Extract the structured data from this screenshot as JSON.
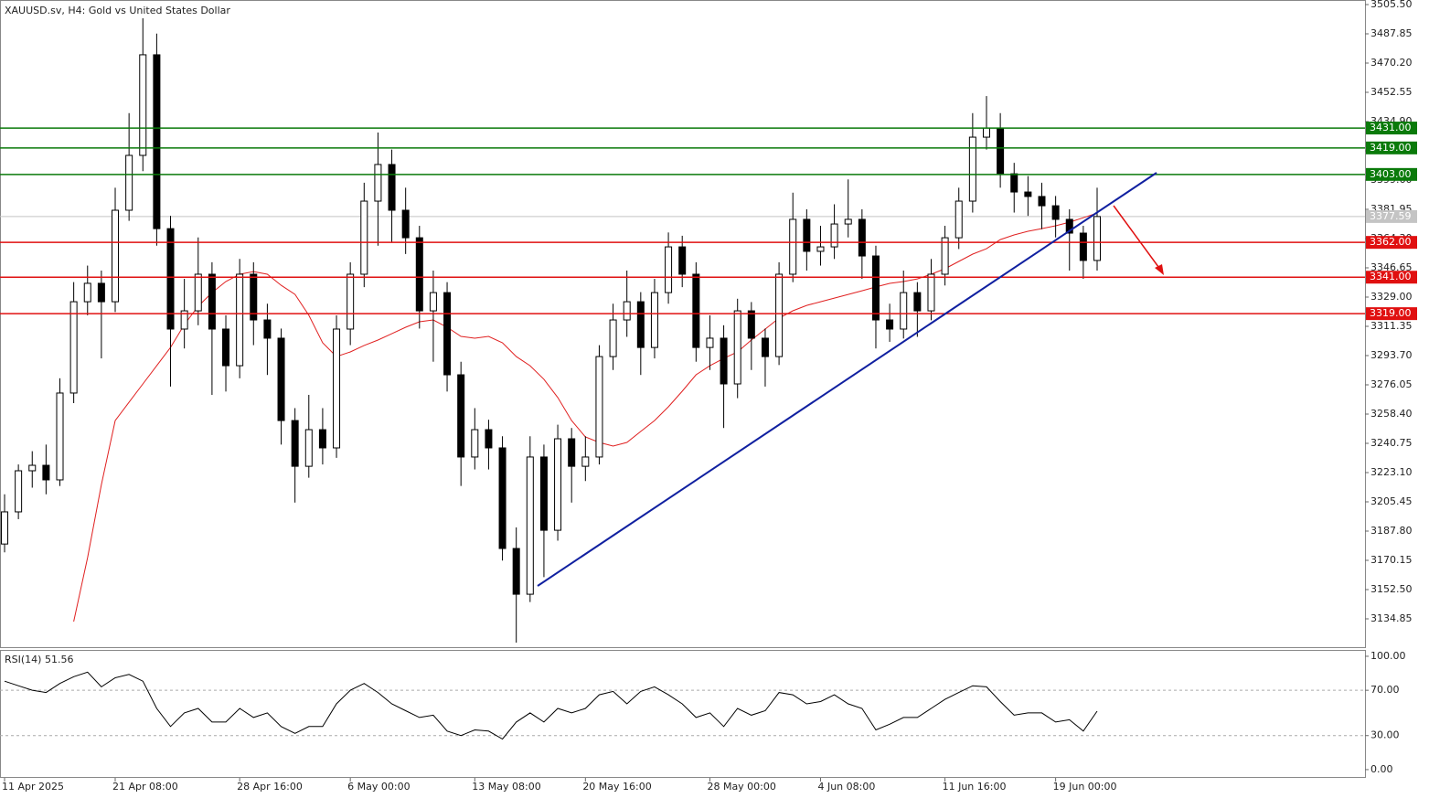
{
  "chart_data": [
    {
      "type": "candlestick",
      "title": "XAUUSD.sv, H4:  Gold vs United States Dollar",
      "categories": [
        "11 Apr 2025",
        null,
        null,
        null,
        null,
        null,
        null,
        null,
        "21 Apr 08:00",
        null,
        null,
        null,
        null,
        null,
        null,
        null,
        null,
        "28 Apr 16:00",
        null,
        null,
        null,
        null,
        null,
        null,
        null,
        "6 May 00:00",
        null,
        null,
        null,
        null,
        null,
        null,
        null,
        null,
        "13 May 08:00",
        null,
        null,
        null,
        null,
        null,
        null,
        null,
        "20 May 16:00",
        null,
        null,
        null,
        null,
        null,
        null,
        null,
        null,
        "28 May 00:00",
        null,
        null,
        null,
        null,
        null,
        null,
        null,
        "4 Jun 08:00",
        null,
        null,
        null,
        null,
        null,
        null,
        null,
        null,
        "11 Jun 16:00",
        null,
        null,
        null,
        null,
        null,
        null,
        null,
        "19 Jun 00:00",
        null,
        null,
        null
      ],
      "open": [
        3180,
        3199.4,
        3224.2,
        3227.5,
        3218.7,
        3271.1,
        3326.2,
        3337.3,
        3326.2,
        3381.4,
        3414.5,
        3475.2,
        3370.3,
        3309.7,
        3320.7,
        3342.8,
        3309.7,
        3287.6,
        3342.8,
        3315.2,
        3304.2,
        3254.5,
        3226.9,
        3249.0,
        3238.0,
        3309.7,
        3342.8,
        3386.9,
        3409.0,
        3381.4,
        3364.8,
        3320.7,
        3331.7,
        3282.1,
        3232.5,
        3249.0,
        3238.0,
        3177.3,
        3149.7,
        3232.5,
        3188.3,
        3243.5,
        3226.9,
        3232.5,
        3293.1,
        3315.2,
        3326.2,
        3298.6,
        3331.7,
        3359.3,
        3342.8,
        3298.6,
        3304.2,
        3276.6,
        3320.7,
        3304.2,
        3293.1,
        3342.8,
        3375.9,
        3356.6,
        3359.3,
        3373.1,
        3375.9,
        3353.8,
        3315.2,
        3309.7,
        3331.7,
        3320.7,
        3342.8,
        3364.8,
        3386.9,
        3425.5,
        3431.0,
        3403.4,
        3392.4,
        3389.7,
        3384.1,
        3375.9,
        3367.6,
        3351.1
      ],
      "high": [
        3210,
        3228,
        3236,
        3240,
        3280,
        3338,
        3348,
        3345,
        3395,
        3440,
        3497.2,
        3488,
        3378,
        3340,
        3365,
        3350,
        3318,
        3352,
        3350,
        3325,
        3310,
        3262,
        3270,
        3262,
        3318,
        3350,
        3398,
        3428.3,
        3418,
        3395,
        3372,
        3345,
        3338,
        3290,
        3262,
        3255,
        3245,
        3190,
        3245,
        3240,
        3252,
        3250,
        3245,
        3300,
        3325,
        3345,
        3332,
        3340,
        3368,
        3366,
        3350,
        3318,
        3312,
        3328,
        3326,
        3310,
        3350,
        3392,
        3382,
        3372,
        3385,
        3400,
        3382,
        3360,
        3325,
        3345,
        3338,
        3352,
        3372,
        3395,
        3440,
        3450.3,
        3440,
        3410,
        3402,
        3398,
        3390,
        3382,
        3372,
        3395
      ],
      "low": [
        3175,
        3195,
        3214,
        3210,
        3215,
        3265,
        3318,
        3292,
        3320,
        3375,
        3405,
        3360,
        3275,
        3298,
        3312,
        3270,
        3272,
        3280,
        3300,
        3282,
        3240,
        3205,
        3220,
        3228,
        3232,
        3300,
        3335,
        3360,
        3362,
        3355,
        3310,
        3290,
        3272,
        3215,
        3225,
        3225,
        3170,
        3120.5,
        3145,
        3160,
        3182,
        3205,
        3218,
        3228,
        3285,
        3305,
        3282,
        3292,
        3325,
        3335,
        3290,
        3285,
        3250,
        3268,
        3285,
        3275,
        3288,
        3338,
        3345,
        3348,
        3352,
        3365,
        3340,
        3298,
        3302,
        3304,
        3305,
        3315,
        3336,
        3358,
        3380,
        3418,
        3395,
        3380,
        3378,
        3370,
        3365,
        3345,
        3340,
        3345
      ],
      "close": [
        3199.4,
        3224.2,
        3227.5,
        3218.7,
        3271.1,
        3326.2,
        3337.3,
        3326.2,
        3381.4,
        3414.5,
        3475.2,
        3370.3,
        3309.7,
        3320.7,
        3342.8,
        3309.7,
        3287.6,
        3342.8,
        3315.2,
        3304.2,
        3254.5,
        3226.9,
        3249.0,
        3238.0,
        3309.7,
        3342.8,
        3386.9,
        3409.0,
        3381.4,
        3364.8,
        3320.7,
        3331.7,
        3282.1,
        3232.5,
        3249.0,
        3238.0,
        3177.3,
        3149.7,
        3232.5,
        3188.3,
        3243.5,
        3226.9,
        3232.5,
        3293.1,
        3315.2,
        3326.2,
        3298.6,
        3331.7,
        3359.3,
        3342.8,
        3298.6,
        3304.2,
        3276.6,
        3320.7,
        3304.2,
        3293.1,
        3342.8,
        3375.9,
        3356.6,
        3359.3,
        3373.1,
        3375.9,
        3353.8,
        3315.2,
        3309.7,
        3331.7,
        3320.7,
        3342.8,
        3364.8,
        3386.9,
        3425.5,
        3431.0,
        3403.4,
        3392.4,
        3389.7,
        3384.1,
        3375.9,
        3367.6,
        3351.1,
        3377.6
      ],
      "up_color": "#ffffff",
      "down_color": "#000000",
      "wick_color": "#000000",
      "ma_color": "#e02020",
      "ma_values": [
        null,
        null,
        null,
        null,
        null,
        3133.2,
        3171.8,
        3215.9,
        3254.5,
        3265.5,
        3276.6,
        3287.6,
        3298.6,
        3312.4,
        3323.5,
        3331.7,
        3338.4,
        3342.8,
        3344.4,
        3342.8,
        3336.1,
        3330.6,
        3318.0,
        3301.4,
        3293.1,
        3295.9,
        3299.8,
        3303.1,
        3306.9,
        3310.8,
        3314.1,
        3315.2,
        3310.8,
        3305.3,
        3304.2,
        3305.3,
        3301.4,
        3293.1,
        3287.6,
        3279.4,
        3268.4,
        3254.5,
        3244.6,
        3241.3,
        3239.1,
        3241.3,
        3247.9,
        3254.5,
        3262.8,
        3272.2,
        3282.1,
        3287.6,
        3292.0,
        3295.9,
        3303.1,
        3309.7,
        3316.3,
        3320.7,
        3324.0,
        3326.2,
        3328.4,
        3330.6,
        3332.8,
        3335.1,
        3337.3,
        3338.4,
        3340.0,
        3342.8,
        3346.1,
        3350.5,
        3354.9,
        3358.2,
        3363.7,
        3366.5,
        3368.7,
        3370.3,
        3372.0,
        3374.2,
        3376.9,
        3379.7
      ],
      "levels": [
        {
          "value": 3431,
          "label": "3431.00",
          "color": "#0a7a0a"
        },
        {
          "value": 3419,
          "label": "3419.00",
          "color": "#0a7a0a"
        },
        {
          "value": 3403,
          "label": "3403.00",
          "color": "#0a7a0a"
        },
        {
          "value": 3362,
          "label": "3362.00",
          "color": "#e01010"
        },
        {
          "value": 3341,
          "label": "3341.00",
          "color": "#e01010"
        },
        {
          "value": 3319,
          "label": "3319.00",
          "color": "#e01010"
        }
      ],
      "last_price": 3377.59,
      "last_price_color": "#c4c4c4",
      "ylim": [
        3117.75,
        3508.26
      ],
      "yticks": [
        {
          "value": 3505.5,
          "label": "3505.50"
        },
        {
          "value": 3487.85,
          "label": "3487.85"
        },
        {
          "value": 3470.2,
          "label": "3470.20"
        },
        {
          "value": 3452.55,
          "label": "3452.55"
        },
        {
          "value": 3434.9,
          "label": "3434.90"
        },
        {
          "value": 3417.25,
          "label": "3417.25"
        },
        {
          "value": 3399.6,
          "label": "3399.60"
        },
        {
          "value": 3381.95,
          "label": "3381.95"
        },
        {
          "value": 3364.3,
          "label": "3364.30"
        },
        {
          "value": 3346.65,
          "label": "3346.65"
        },
        {
          "value": 3329,
          "label": "3329.00"
        },
        {
          "value": 3311.35,
          "label": "3311.35"
        },
        {
          "value": 3293.7,
          "label": "3293.70"
        },
        {
          "value": 3276.05,
          "label": "3276.05"
        },
        {
          "value": 3258.4,
          "label": "3258.40"
        },
        {
          "value": 3240.75,
          "label": "3240.75"
        },
        {
          "value": 3223.1,
          "label": "3223.10"
        },
        {
          "value": 3205.45,
          "label": "3205.45"
        },
        {
          "value": 3187.8,
          "label": "3187.80"
        },
        {
          "value": 3170.15,
          "label": "3170.15"
        },
        {
          "value": 3152.5,
          "label": "3152.50"
        },
        {
          "value": 3134.85,
          "label": "3134.85"
        }
      ]
    },
    {
      "type": "line",
      "title": "RSI(14) 51.56",
      "color": "#000000",
      "values": [
        78,
        74,
        70,
        68,
        76,
        82,
        86,
        73,
        81,
        84,
        78,
        54,
        38,
        50,
        54,
        42,
        42,
        54,
        46,
        50,
        38,
        32,
        38,
        38,
        58,
        70,
        76,
        68,
        58,
        52,
        46,
        48,
        34,
        30,
        35,
        34,
        27,
        42,
        50,
        42,
        54,
        50,
        54,
        66,
        69,
        58,
        69,
        73,
        66,
        58,
        46,
        50,
        38,
        54,
        48,
        52,
        68,
        66,
        58,
        60,
        66,
        58,
        54,
        35,
        40,
        46,
        46,
        54,
        62,
        68,
        74,
        73,
        60,
        48,
        50,
        50,
        42,
        44,
        34,
        51.56
      ],
      "levels": [
        70,
        30
      ],
      "ylim": [
        -6.5,
        104.8
      ],
      "yticks": [
        {
          "value": 100,
          "label": "100.00"
        },
        {
          "value": 70,
          "label": "70.00"
        },
        {
          "value": 30,
          "label": "30.00"
        },
        {
          "value": 0,
          "label": "0.00"
        }
      ]
    }
  ]
}
